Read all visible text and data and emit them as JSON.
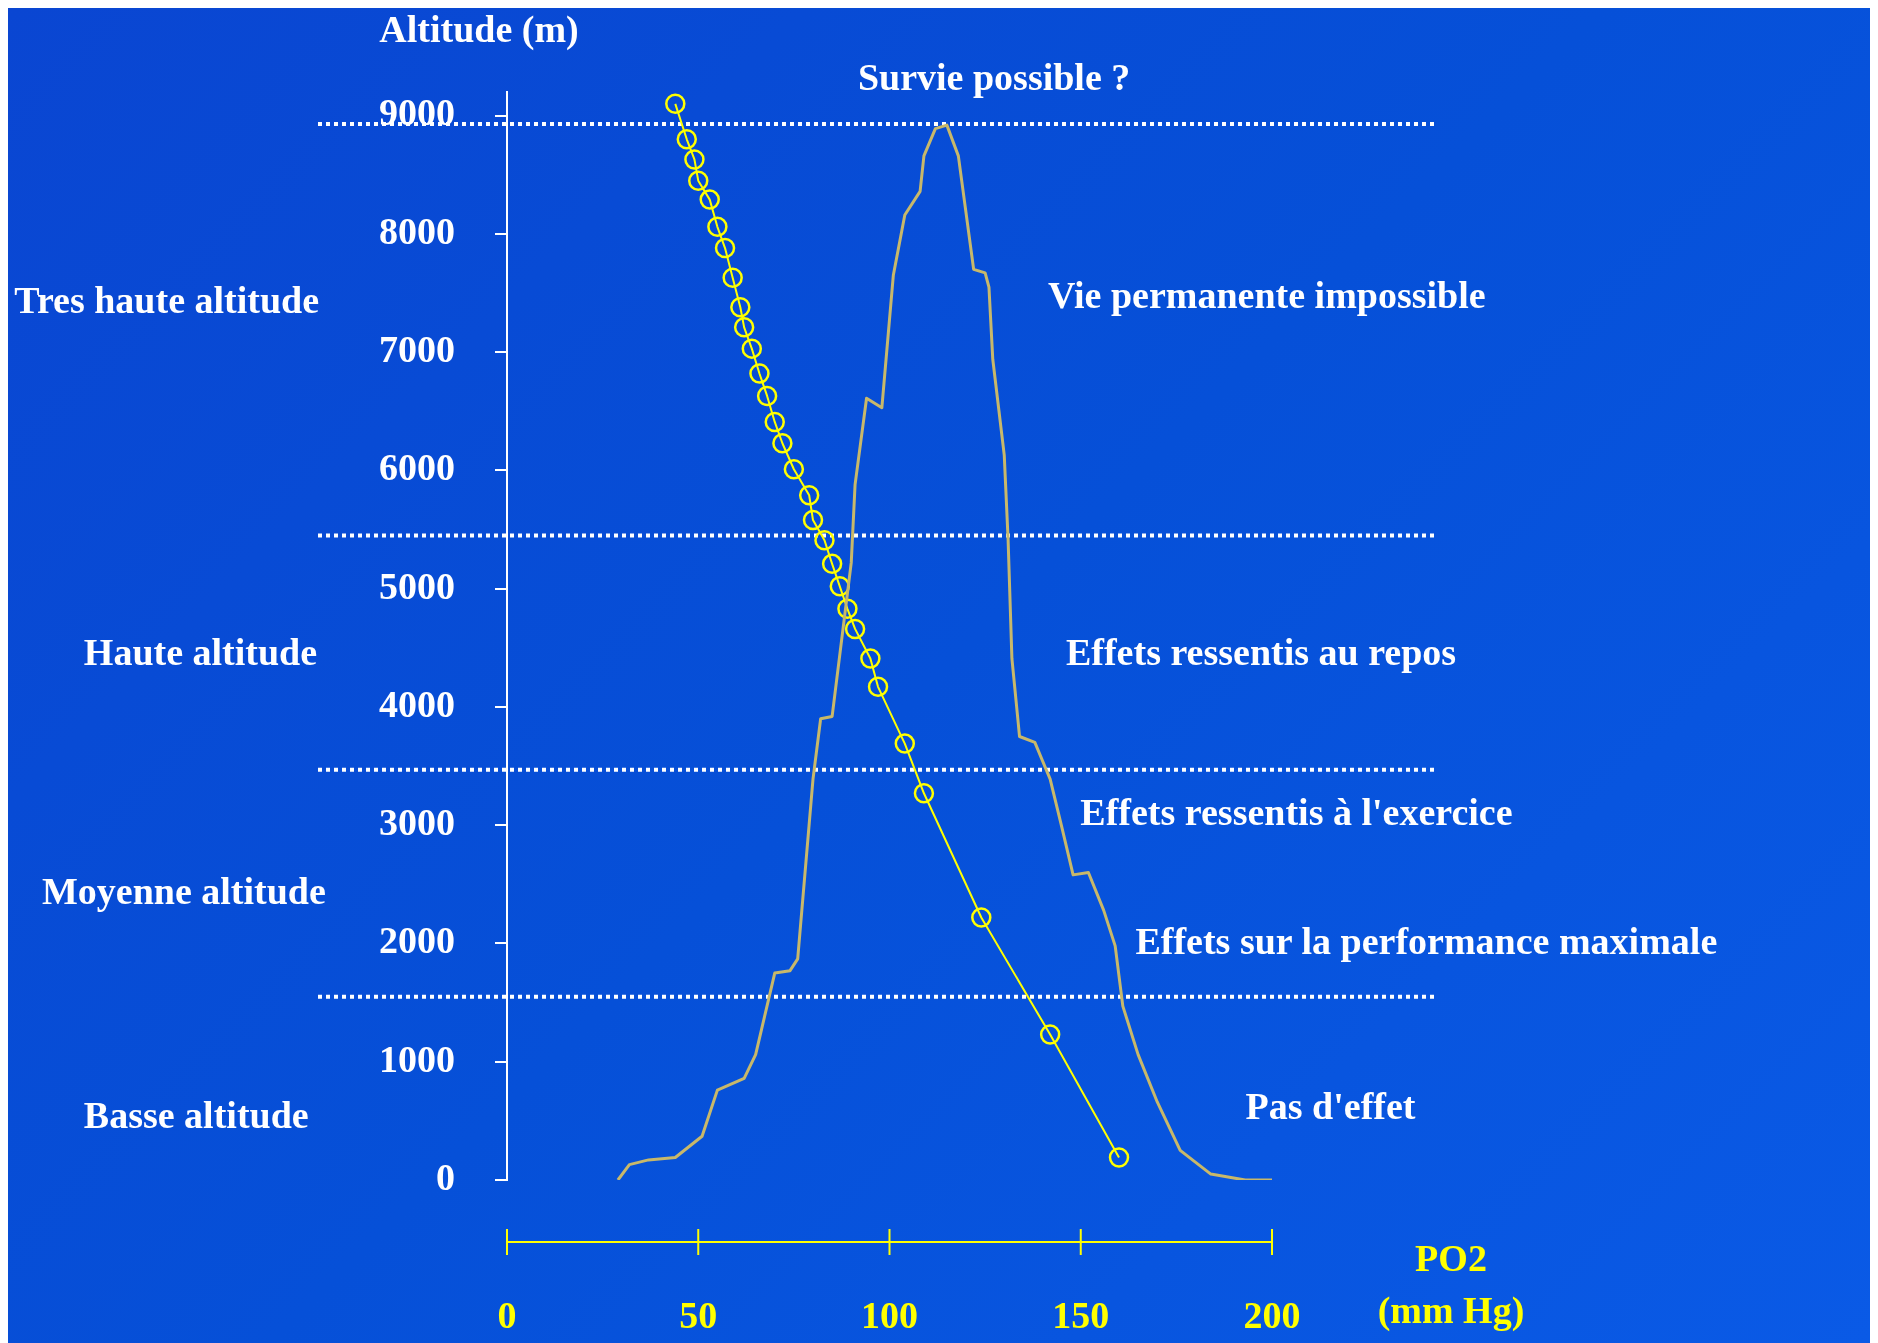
{
  "chart_data": {
    "type": "line",
    "ylabel": "Altitude (m)",
    "xlabel": "PO2\n(mm Hg)",
    "x": [
      44,
      47,
      49,
      50,
      53,
      55,
      57,
      59,
      61,
      62,
      64,
      66,
      68,
      70,
      72,
      75,
      79,
      80,
      83,
      85,
      87,
      89,
      91,
      95,
      97,
      104,
      109,
      124,
      142,
      160
    ],
    "series": [
      {
        "type": "line",
        "marker": "none",
        "color": "#c8b86a",
        "x": [
          29,
          32,
          37,
          44,
          51,
          55,
          62,
          65,
          70,
          74,
          76,
          80,
          82,
          85,
          90,
          91,
          94,
          98,
          101,
          104,
          108,
          109,
          112,
          115,
          118,
          122,
          125,
          126,
          127,
          130,
          131,
          132,
          134,
          138,
          142,
          145,
          148,
          152,
          156,
          159,
          161,
          165,
          170,
          176,
          184,
          193,
          200
        ],
        "values": [
          0,
          130,
          170,
          190,
          370,
          760,
          860,
          1060,
          1750,
          1770,
          1870,
          3390,
          3900,
          3920,
          5220,
          5880,
          6610,
          6530,
          7650,
          8160,
          8360,
          8660,
          8890,
          8920,
          8660,
          7700,
          7670,
          7550,
          6940,
          6130,
          5420,
          4410,
          3750,
          3700,
          3390,
          2990,
          2580,
          2600,
          2280,
          1980,
          1470,
          1060,
          660,
          250,
          50,
          0,
          0
        ]
      },
      {
        "color": "#ffff00",
        "values": [
          9100,
          8800,
          8630,
          8450,
          8290,
          8060,
          7880,
          7630,
          7380,
          7210,
          7030,
          6820,
          6630,
          6410,
          6230,
          6010,
          5790,
          5580,
          5410,
          5210,
          5020,
          4830,
          4660,
          4410,
          4170,
          3690,
          3270,
          2220,
          1230,
          190
        ]
      }
    ],
    "xlim": [
      0,
      200
    ],
    "xticks": [
      0,
      50,
      100,
      150,
      200
    ],
    "ylim": [
      0,
      9200
    ],
    "yticks": [
      0,
      1000,
      2000,
      3000,
      4000,
      5000,
      6000,
      7000,
      8000,
      9000
    ],
    "ref_lines": [
      {
        "axis": "y",
        "value": 8930,
        "color": "#ffffff",
        "line_style": "dotted"
      },
      {
        "axis": "y",
        "value": 5450,
        "color": "#ffffff",
        "line_style": "dotted"
      },
      {
        "axis": "y",
        "value": 3470,
        "color": "#ffffff",
        "line_style": "dotted"
      },
      {
        "axis": "y",
        "value": 1550,
        "color": "#ffffff",
        "line_style": "dotted"
      }
    ],
    "annotations": [
      "Tres haute altitude",
      "Haute altitude",
      "Moyenne altitude",
      "Basse altitude",
      "Survie possible ?",
      "Vie permanente impossible",
      "Effets ressentis au repos",
      "Effets ressentis à l'exercice",
      "Effets sur la performance maximale",
      "Pas d'effet"
    ],
    "grid": false,
    "legend": false,
    "marker": "circle",
    "line_style": "solid"
  }
}
